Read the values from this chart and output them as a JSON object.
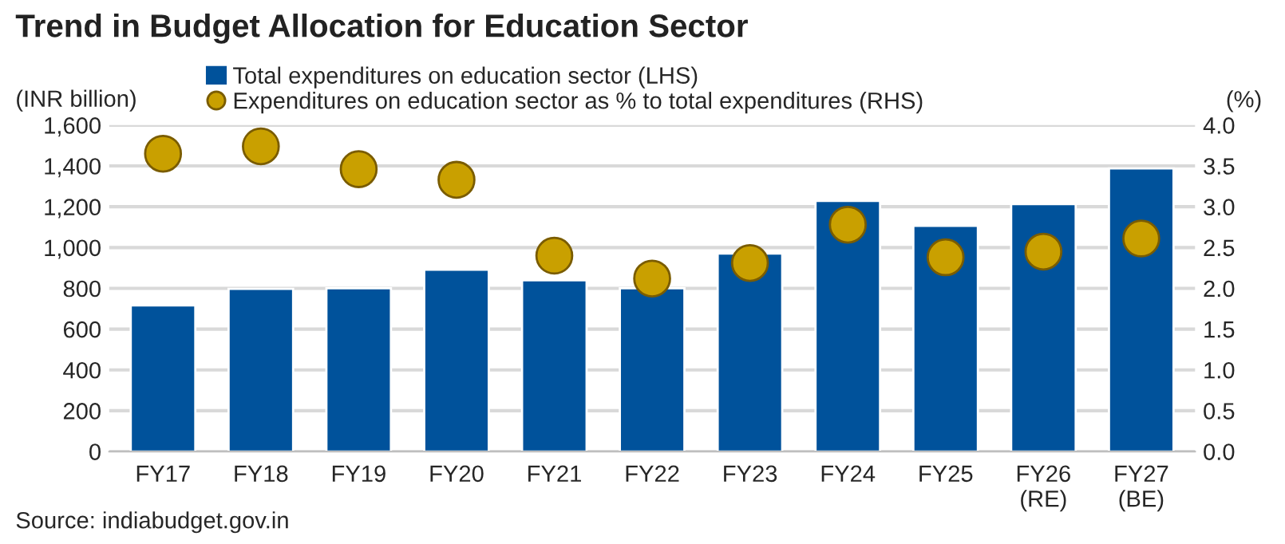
{
  "chart_data": {
    "type": "bar",
    "title": "Trend in Budget Allocation for Education Sector",
    "ylabel": "(INR billion)",
    "y2label": "(%)",
    "categories": [
      "FY17",
      "FY18",
      "FY19",
      "FY20",
      "FY21",
      "FY22",
      "FY23",
      "FY24",
      "FY25",
      "FY26\n(RE)",
      "FY27\n(BE)"
    ],
    "series": [
      {
        "name": "Total expenditures on education sector (LHS)",
        "color": "#00529b",
        "values": [
          716,
          797,
          800,
          891,
          839,
          800,
          970,
          1229,
          1106,
          1213,
          1388
        ]
      },
      {
        "name": "Expenditures on education sector as % to total expenditures (RHS)",
        "type": "scatter",
        "axis": "y2",
        "color": "#c9a000",
        "values": [
          3.65,
          3.74,
          3.46,
          3.33,
          2.4,
          2.12,
          2.31,
          2.78,
          2.38,
          2.45,
          2.61
        ]
      }
    ],
    "ylim": [
      0,
      1600
    ],
    "yticks": [
      {
        "value": 0,
        "label": "0"
      },
      {
        "value": 200,
        "label": "200"
      },
      {
        "value": 400,
        "label": "400"
      },
      {
        "value": 600,
        "label": "600"
      },
      {
        "value": 800,
        "label": "800"
      },
      {
        "value": 1000,
        "label": "1,000"
      },
      {
        "value": 1200,
        "label": "1,200"
      },
      {
        "value": 1400,
        "label": "1,400"
      },
      {
        "value": 1600,
        "label": "1,600"
      }
    ],
    "y2lim": [
      0,
      4
    ],
    "y2ticks": [
      {
        "value": 0,
        "label": "0.0"
      },
      {
        "value": 0.5,
        "label": "0.5"
      },
      {
        "value": 1,
        "label": "1.0"
      },
      {
        "value": 1.5,
        "label": "1.5"
      },
      {
        "value": 2,
        "label": "2.0"
      },
      {
        "value": 2.5,
        "label": "2.5"
      },
      {
        "value": 3,
        "label": "3.0"
      },
      {
        "value": 3.5,
        "label": "3.5"
      },
      {
        "value": 4,
        "label": "4.0"
      }
    ],
    "grid": "y",
    "legend": "top",
    "marker": "circle",
    "annotations": [
      "Source: indiabudget.gov.in"
    ]
  }
}
